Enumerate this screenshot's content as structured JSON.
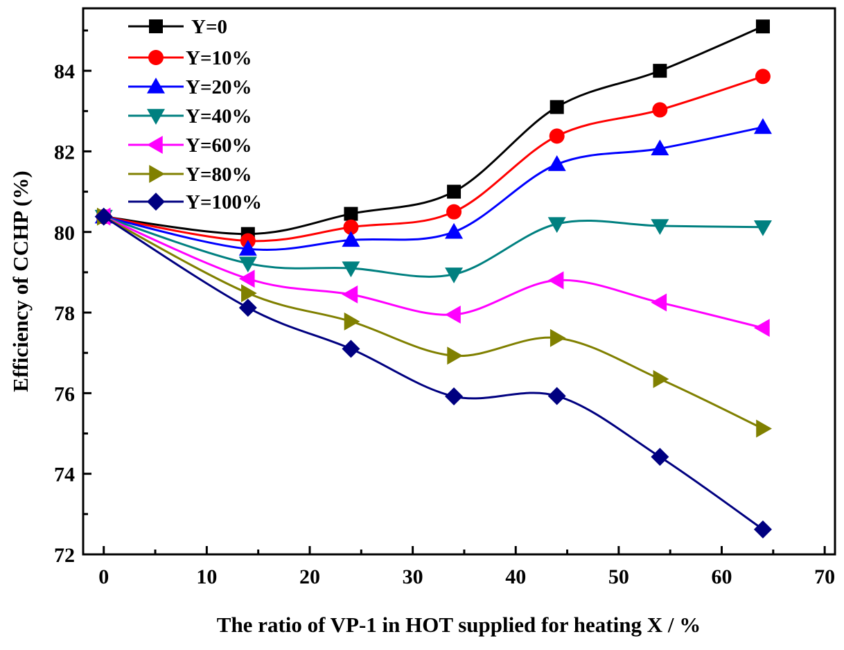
{
  "chart_data": {
    "type": "line",
    "title": "",
    "xlabel": "The ratio of VP-1 in HOT supplied for heating X / %",
    "ylabel": "Efficiency of CCHP (%)",
    "xlim": [
      -2,
      71
    ],
    "ylim": [
      72,
      85.55
    ],
    "xticks": [
      0,
      10,
      20,
      30,
      40,
      50,
      60,
      70
    ],
    "yticks": [
      72,
      74,
      76,
      78,
      80,
      82,
      84
    ],
    "grid": false,
    "legend_position": "top-left",
    "x": [
      0,
      14,
      24,
      34,
      44,
      54,
      64
    ],
    "series": [
      {
        "name": "Y=0",
        "color": "#000000",
        "marker": "square",
        "values": [
          80.38,
          79.95,
          80.45,
          81.0,
          83.1,
          84.0,
          85.1
        ]
      },
      {
        "name": "Y=10%",
        "color": "#ff0000",
        "marker": "circle",
        "values": [
          80.38,
          79.78,
          80.12,
          80.5,
          82.38,
          83.03,
          83.86
        ]
      },
      {
        "name": "Y=20%",
        "color": "#0000ff",
        "marker": "triangle-up",
        "values": [
          80.38,
          79.58,
          79.8,
          80.0,
          81.68,
          82.07,
          82.6
        ]
      },
      {
        "name": "Y=40%",
        "color": "#008080",
        "marker": "triangle-down",
        "values": [
          80.38,
          79.22,
          79.1,
          78.95,
          80.2,
          80.15,
          80.12
        ]
      },
      {
        "name": "Y=60%",
        "color": "#ff00ff",
        "marker": "triangle-left",
        "values": [
          80.38,
          78.84,
          78.45,
          77.95,
          78.8,
          78.25,
          77.62
        ]
      },
      {
        "name": "Y=80%",
        "color": "#808000",
        "marker": "triangle-right",
        "values": [
          80.38,
          78.48,
          77.78,
          76.93,
          77.37,
          76.35,
          75.12
        ]
      },
      {
        "name": "Y=100%",
        "color": "#000080",
        "marker": "diamond",
        "values": [
          80.38,
          78.12,
          77.1,
          75.92,
          75.93,
          74.42,
          72.62
        ]
      }
    ]
  }
}
